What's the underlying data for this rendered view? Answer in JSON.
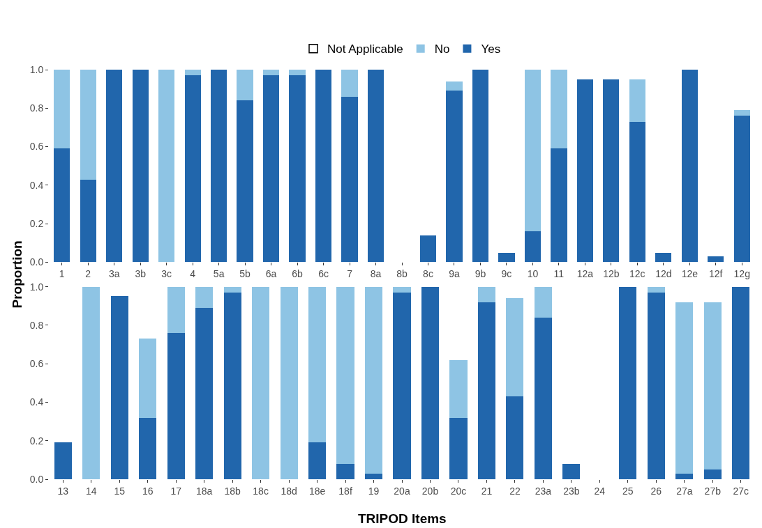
{
  "chart_data": [
    {
      "type": "bar",
      "stacked": true,
      "ylabel": "Proportion",
      "legend": "top",
      "ylim": [
        0,
        1.0
      ],
      "yticks": [
        {
          "value": 0,
          "label": "0.0"
        },
        {
          "value": 0.2,
          "label": "0.2"
        },
        {
          "value": 0.4,
          "label": "0.4"
        },
        {
          "value": 0.6,
          "label": "0.6"
        },
        {
          "value": 0.8,
          "label": "0.8"
        },
        {
          "value": 1.0,
          "label": "1.0"
        }
      ],
      "categories": [
        "1",
        "2",
        "3a",
        "3b",
        "3c",
        "4",
        "5a",
        "5b",
        "6a",
        "6b",
        "6c",
        "7",
        "8a",
        "8b",
        "8c",
        "9a",
        "9b",
        "9c",
        "10",
        "11",
        "12a",
        "12b",
        "12c",
        "12d",
        "12e",
        "12f",
        "12g"
      ],
      "series": [
        {
          "name": "Yes",
          "color": "#2166ac",
          "values": [
            0.59,
            0.43,
            1,
            1,
            0,
            0.97,
            1,
            0.84,
            0.97,
            0.97,
            1,
            0.86,
            1,
            0,
            0.14,
            0.89,
            1,
            0.05,
            0.16,
            0.59,
            0.95,
            0.95,
            0.73,
            0.05,
            1,
            0.03,
            0.76
          ]
        },
        {
          "name": "No",
          "color": "#8ec4e4",
          "values": [
            0.41,
            0.57,
            0,
            0,
            1,
            0.03,
            0,
            0.16,
            0.03,
            0.03,
            0,
            0.14,
            0,
            0,
            0,
            0.05,
            0,
            0,
            0.84,
            0.41,
            0,
            0,
            0.22,
            0,
            0,
            0,
            0.03
          ]
        },
        {
          "name": "Not Applicable",
          "color": "#ffffff",
          "values": [
            null,
            null,
            null,
            null,
            null,
            null,
            null,
            null,
            null,
            null,
            null,
            null,
            null,
            null,
            null,
            null,
            null,
            null,
            null,
            null,
            null,
            null,
            null,
            null,
            null,
            null,
            null
          ]
        }
      ]
    },
    {
      "type": "bar",
      "stacked": true,
      "xlabel": "TRIPOD Items",
      "ylim": [
        0,
        1.0
      ],
      "yticks": [
        {
          "value": 0,
          "label": "0.0"
        },
        {
          "value": 0.2,
          "label": "0.2"
        },
        {
          "value": 0.4,
          "label": "0.4"
        },
        {
          "value": 0.6,
          "label": "0.6"
        },
        {
          "value": 0.8,
          "label": "0.8"
        },
        {
          "value": 1.0,
          "label": "1.0"
        }
      ],
      "categories": [
        "13",
        "14",
        "15",
        "16",
        "17",
        "18a",
        "18b",
        "18c",
        "18d",
        "18e",
        "18f",
        "19",
        "20a",
        "20b",
        "20c",
        "21",
        "22",
        "23a",
        "23b",
        "24",
        "25",
        "26",
        "27a",
        "27b",
        "27c"
      ],
      "series": [
        {
          "color": "#2166ac",
          "values": [
            0.19,
            0,
            0.95,
            0.32,
            0.76,
            0.89,
            0.97,
            0,
            0,
            0.19,
            0.08,
            0.03,
            0.97,
            1,
            0.32,
            0.92,
            0.43,
            0.84,
            0.08,
            0,
            1,
            0.97,
            0.03,
            0.05,
            1
          ]
        },
        {
          "color": "#8ec4e4",
          "values": [
            0,
            1,
            0,
            0.41,
            0.24,
            0.11,
            0.03,
            1,
            1,
            0.81,
            0.92,
            0.97,
            0.03,
            0,
            0.3,
            0.08,
            0.51,
            0.16,
            0,
            0,
            0,
            0.03,
            0.89,
            0.87,
            0
          ]
        }
      ]
    }
  ]
}
